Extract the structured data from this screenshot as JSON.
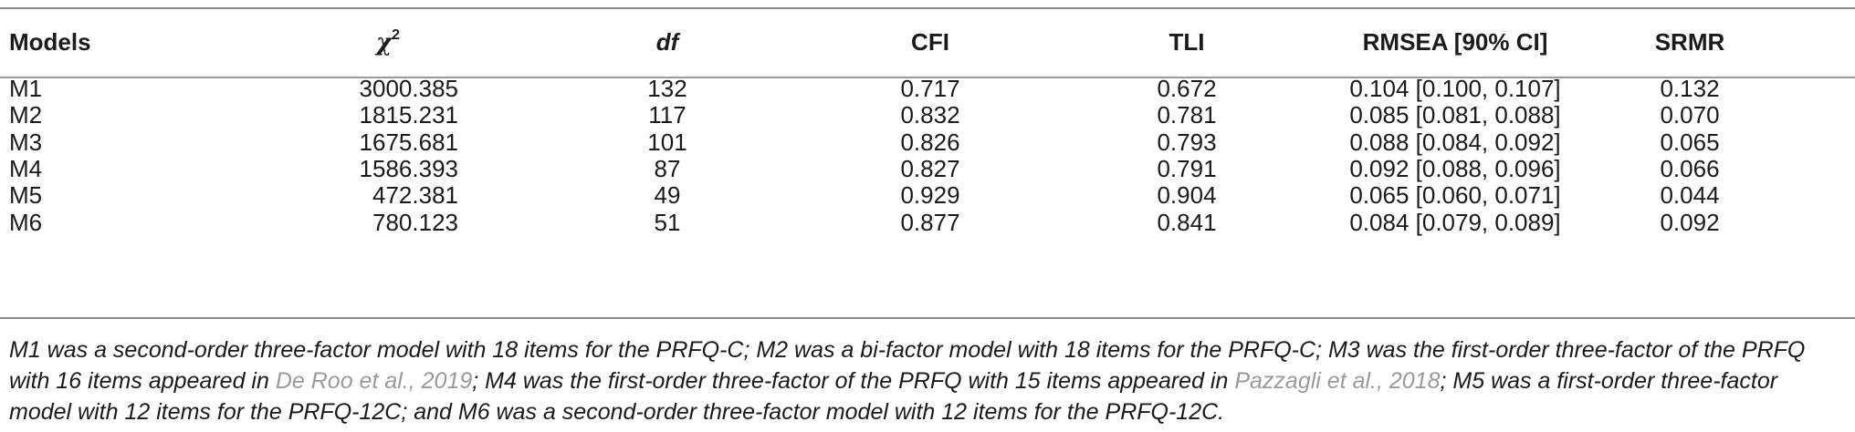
{
  "table": {
    "headers": {
      "models": "Models",
      "chi_symbol": "χ",
      "chi_sup": "2",
      "df": "df",
      "cfi": "CFI",
      "tli": "TLI",
      "rmsea": "RMSEA [90% CI]",
      "srmr": "SRMR"
    },
    "rows": [
      {
        "model": "M1",
        "chi2": "3000.385",
        "df": "132",
        "cfi": "0.717",
        "tli": "0.672",
        "rmsea": "0.104 [0.100, 0.107]",
        "srmr": "0.132"
      },
      {
        "model": "M2",
        "chi2": "1815.231",
        "df": "117",
        "cfi": "0.832",
        "tli": "0.781",
        "rmsea": "0.085 [0.081, 0.088]",
        "srmr": "0.070"
      },
      {
        "model": "M3",
        "chi2": "1675.681",
        "df": "101",
        "cfi": "0.826",
        "tli": "0.793",
        "rmsea": "0.088 [0.084, 0.092]",
        "srmr": "0.065"
      },
      {
        "model": "M4",
        "chi2": "1586.393",
        "df": "87",
        "cfi": "0.827",
        "tli": "0.791",
        "rmsea": "0.092 [0.088, 0.096]",
        "srmr": "0.066"
      },
      {
        "model": "M5",
        "chi2": "472.381",
        "df": "49",
        "cfi": "0.929",
        "tli": "0.904",
        "rmsea": "0.065 [0.060, 0.071]",
        "srmr": "0.044"
      },
      {
        "model": "M6",
        "chi2": "780.123",
        "df": "51",
        "cfi": "0.877",
        "tli": "0.841",
        "rmsea": "0.084 [0.079, 0.089]",
        "srmr": "0.092"
      }
    ]
  },
  "note": {
    "part1": "M1 was a second-order three-factor model with 18 items for the PRFQ-C; M2 was a bi-factor model with 18 items for the PRFQ-C; M3 was the first-order three-factor of the PRFQ with 16 items appeared in ",
    "cite1": "De Roo et al., 2019",
    "part2": "; M4 was the first-order three-factor of the PRFQ with 15 items appeared in ",
    "cite2": "Pazzagli et al., 2018",
    "part3": "; M5 was a first-order three-factor model with 12 items for the PRFQ-12C; and M6 was a second-order three-factor model with 12 items for the PRFQ-12C."
  },
  "colors": {
    "text": "#1a1a1a",
    "rule": "#8a8a8a",
    "citation": "#9a9a9a"
  }
}
